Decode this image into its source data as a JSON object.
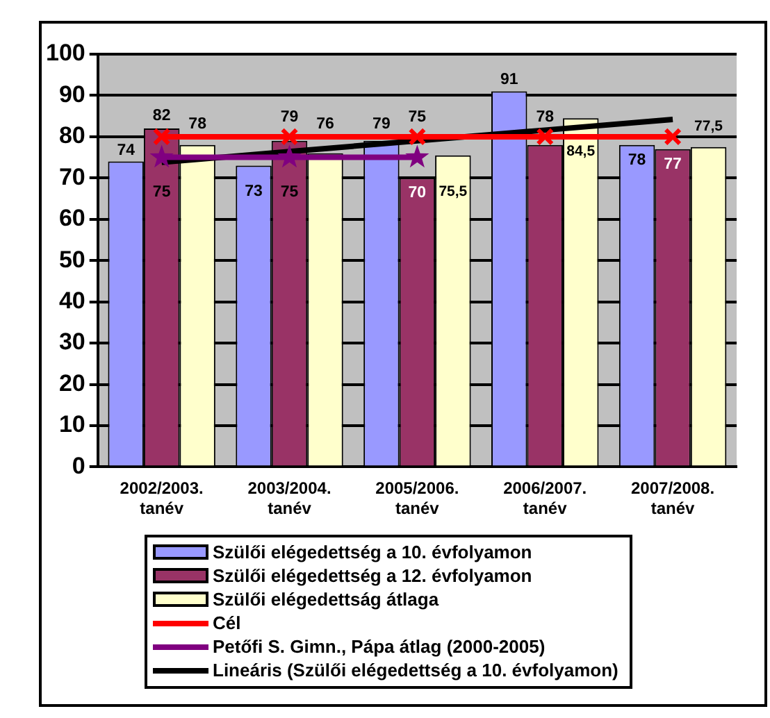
{
  "chart_data": {
    "type": "bar",
    "categories": [
      "2002/2003. tanév",
      "2003/2004. tanév",
      "2005/2006. tanév",
      "2006/2007. tanév",
      "2007/2008. tanév"
    ],
    "series": [
      {
        "name": "Szülői elégedettség a 10. évfolyamon",
        "color": "#9999ff",
        "values": [
          74,
          73,
          79,
          91,
          78
        ],
        "value_labels": [
          "74",
          "73",
          "79",
          "91",
          "78"
        ]
      },
      {
        "name": "Szülői elégedettség a 12. évfolyamon",
        "color": "#993366",
        "values": [
          82,
          79,
          70,
          78,
          77
        ],
        "value_labels": [
          "82",
          "79",
          "70",
          "78",
          "77"
        ]
      },
      {
        "name": "Szülői elégedettság átlaga",
        "color": "#ffffcc",
        "values": [
          78,
          76,
          75.5,
          84.5,
          77.5
        ],
        "value_labels": [
          "78",
          "76",
          "75,5",
          "84,5",
          "77,5"
        ]
      },
      {
        "name": "Cél",
        "type": "line",
        "color": "#ff0000",
        "marker": "cross",
        "values": [
          80,
          80,
          80,
          80,
          80
        ]
      },
      {
        "name": "Petőfi S. Gimn., Pápa átlag (2000-2005)",
        "type": "line",
        "color": "#800080",
        "marker": "star",
        "values": [
          75,
          75,
          75,
          null,
          null
        ],
        "value_labels": [
          "75",
          "75",
          "75",
          null,
          null
        ]
      },
      {
        "name": "Lineáris (Szülői elégedettség a 10. évfolyamon)",
        "type": "line",
        "color": "#000000",
        "marker": "none",
        "values": [
          73.8,
          76.4,
          79,
          81.6,
          84.2
        ]
      }
    ],
    "ylim": [
      0,
      100
    ],
    "yticks": [
      0,
      10,
      20,
      30,
      40,
      50,
      60,
      70,
      80,
      90,
      100
    ],
    "grid": "y",
    "legend": "bottom"
  }
}
